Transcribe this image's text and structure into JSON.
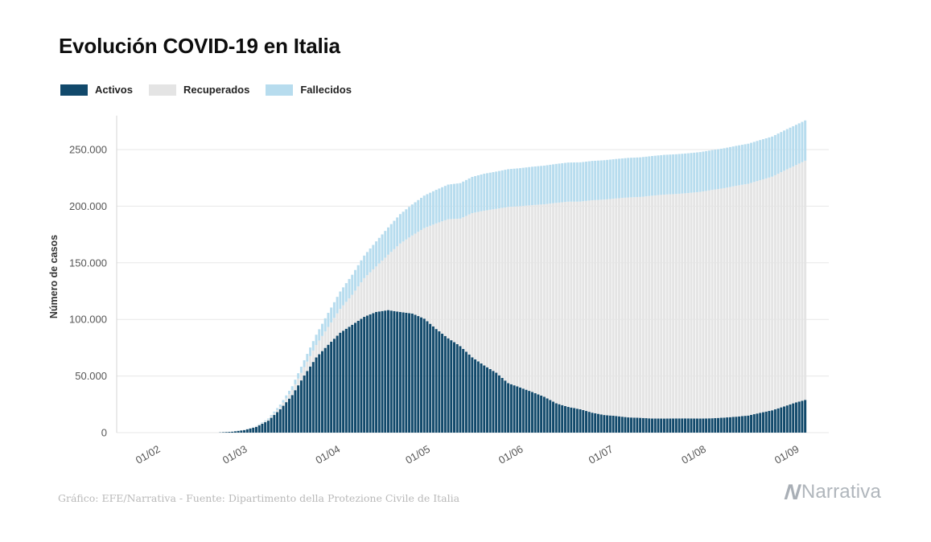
{
  "title": "Evolución COVID-19 en Italia",
  "legend": [
    {
      "label": "Activos",
      "color": "#11496b"
    },
    {
      "label": "Recuperados",
      "color": "#e4e4e4"
    },
    {
      "label": "Fallecidos",
      "color": "#b7dcee"
    }
  ],
  "footer": {
    "credit": "Gráfico: EFE/Narrativa - Fuente: Dipartimento della Protezione Civile de Italia",
    "brand_mark": "N",
    "brand": "Narrativa"
  },
  "colors": {
    "activos": "#11496b",
    "recuperados": "#e4e4e4",
    "fallecidos": "#b7dcee",
    "gridline": "#e7e7e7",
    "axis_line": "#d5d5d5",
    "tick_text": "#565656"
  },
  "chart_data": {
    "type": "bar",
    "stacked": true,
    "title": "Evolución COVID-19 en Italia",
    "xlabel": "",
    "ylabel": "Número de casos",
    "ylim": [
      0,
      280000
    ],
    "grid": true,
    "legend_position": "top-left",
    "series_names": [
      "Activos",
      "Recuperados",
      "Fallecidos"
    ],
    "x_ticks": [
      "01/02",
      "01/03",
      "01/04",
      "01/05",
      "01/06",
      "01/07",
      "01/08",
      "01/09"
    ],
    "y_ticks": [
      {
        "value": 0,
        "label": "0"
      },
      {
        "value": 50000,
        "label": "50.000"
      },
      {
        "value": 100000,
        "label": "100.000"
      },
      {
        "value": 150000,
        "label": "150.000"
      },
      {
        "value": 200000,
        "label": "200.000"
      },
      {
        "value": 250000,
        "label": "250.000"
      }
    ],
    "points": [
      {
        "date": "24/02",
        "activos": 221,
        "recuperados": 1,
        "fallecidos": 7
      },
      {
        "date": "28/02",
        "activos": 821,
        "recuperados": 46,
        "fallecidos": 21
      },
      {
        "date": "03/03",
        "activos": 2263,
        "recuperados": 160,
        "fallecidos": 79
      },
      {
        "date": "07/03",
        "activos": 5061,
        "recuperados": 589,
        "fallecidos": 233
      },
      {
        "date": "11/03",
        "activos": 10590,
        "recuperados": 1045,
        "fallecidos": 827
      },
      {
        "date": "15/03",
        "activos": 20603,
        "recuperados": 2335,
        "fallecidos": 1809
      },
      {
        "date": "19/03",
        "activos": 33190,
        "recuperados": 4440,
        "fallecidos": 3405
      },
      {
        "date": "23/03",
        "activos": 50418,
        "recuperados": 7432,
        "fallecidos": 6077
      },
      {
        "date": "27/03",
        "activos": 66414,
        "recuperados": 10950,
        "fallecidos": 9134
      },
      {
        "date": "31/03",
        "activos": 77635,
        "recuperados": 15729,
        "fallecidos": 12428
      },
      {
        "date": "04/04",
        "activos": 88274,
        "recuperados": 20996,
        "fallecidos": 15362
      },
      {
        "date": "08/04",
        "activos": 95262,
        "recuperados": 26491,
        "fallecidos": 17669
      },
      {
        "date": "12/04",
        "activos": 102253,
        "recuperados": 34211,
        "fallecidos": 19899
      },
      {
        "date": "16/04",
        "activos": 106607,
        "recuperados": 40164,
        "fallecidos": 22170
      },
      {
        "date": "20/04",
        "activos": 108237,
        "recuperados": 48877,
        "fallecidos": 24114
      },
      {
        "date": "24/04",
        "activos": 106527,
        "recuperados": 60498,
        "fallecidos": 25969
      },
      {
        "date": "28/04",
        "activos": 105205,
        "recuperados": 68941,
        "fallecidos": 27359
      },
      {
        "date": "02/05",
        "activos": 100704,
        "recuperados": 79914,
        "fallecidos": 28710
      },
      {
        "date": "06/05",
        "activos": 91528,
        "recuperados": 93245,
        "fallecidos": 29684
      },
      {
        "date": "10/05",
        "activos": 83324,
        "recuperados": 105186,
        "fallecidos": 30560
      },
      {
        "date": "14/05",
        "activos": 76440,
        "recuperados": 112541,
        "fallecidos": 31368
      },
      {
        "date": "18/05",
        "activos": 66553,
        "recuperados": 127326,
        "fallecidos": 32007
      },
      {
        "date": "22/05",
        "activos": 59322,
        "recuperados": 136720,
        "fallecidos": 32616
      },
      {
        "date": "26/05",
        "activos": 52942,
        "recuperados": 144658,
        "fallecidos": 32955
      },
      {
        "date": "30/05",
        "activos": 43691,
        "recuperados": 155633,
        "fallecidos": 33340
      },
      {
        "date": "03/06",
        "activos": 39893,
        "recuperados": 160092,
        "fallecidos": 33601
      },
      {
        "date": "07/06",
        "activos": 35877,
        "recuperados": 165078,
        "fallecidos": 33899
      },
      {
        "date": "11/06",
        "activos": 31710,
        "recuperados": 169939,
        "fallecidos": 34167
      },
      {
        "date": "15/06",
        "activos": 25909,
        "recuperados": 177010,
        "fallecidos": 34405
      },
      {
        "date": "19/06",
        "activos": 22702,
        "recuperados": 181288,
        "fallecidos": 34561
      },
      {
        "date": "23/06",
        "activos": 20637,
        "recuperados": 183426,
        "fallecidos": 34657
      },
      {
        "date": "27/06",
        "activos": 17638,
        "recuperados": 187615,
        "fallecidos": 34708
      },
      {
        "date": "01/07",
        "activos": 15563,
        "recuperados": 190248,
        "fallecidos": 34788
      },
      {
        "date": "05/07",
        "activos": 14709,
        "recuperados": 192108,
        "fallecidos": 34861
      },
      {
        "date": "09/07",
        "activos": 13459,
        "recuperados": 194273,
        "fallecidos": 34926
      },
      {
        "date": "13/07",
        "activos": 13060,
        "recuperados": 195106,
        "fallecidos": 34954
      },
      {
        "date": "17/07",
        "activos": 12473,
        "recuperados": 196806,
        "fallecidos": 35028
      },
      {
        "date": "21/07",
        "activos": 12404,
        "recuperados": 197842,
        "fallecidos": 35073
      },
      {
        "date": "25/07",
        "activos": 12565,
        "recuperados": 198192,
        "fallecidos": 35102
      },
      {
        "date": "29/07",
        "activos": 12581,
        "recuperados": 199031,
        "fallecidos": 35123
      },
      {
        "date": "02/08",
        "activos": 12422,
        "recuperados": 200229,
        "fallecidos": 35146
      },
      {
        "date": "06/08",
        "activos": 12694,
        "recuperados": 201642,
        "fallecidos": 35187
      },
      {
        "date": "10/08",
        "activos": 13263,
        "recuperados": 202697,
        "fallecidos": 35203
      },
      {
        "date": "14/08",
        "activos": 14081,
        "recuperados": 203968,
        "fallecidos": 35234
      },
      {
        "date": "18/08",
        "activos": 15089,
        "recuperados": 204686,
        "fallecidos": 35400
      },
      {
        "date": "22/08",
        "activos": 17503,
        "recuperados": 205470,
        "fallecidos": 35430
      },
      {
        "date": "26/08",
        "activos": 19714,
        "recuperados": 206329,
        "fallecidos": 35445
      },
      {
        "date": "30/08",
        "activos": 23156,
        "recuperados": 208201,
        "fallecidos": 35473
      },
      {
        "date": "03/09",
        "activos": 26754,
        "recuperados": 209610,
        "fallecidos": 35518
      },
      {
        "date": "06/09",
        "activos": 28915,
        "recuperados": 211272,
        "fallecidos": 35541
      }
    ]
  }
}
